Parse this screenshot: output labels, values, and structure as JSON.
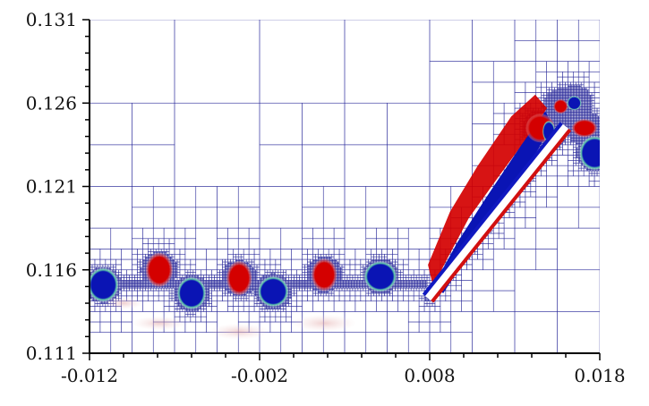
{
  "chart_data": {
    "type": "heatmap",
    "title": "",
    "xlabel": "",
    "ylabel": "",
    "xlim": [
      -0.012,
      0.018
    ],
    "ylim": [
      0.111,
      0.131
    ],
    "x_ticks": [
      "-0.012",
      "-0.002",
      "0.008",
      "0.018"
    ],
    "y_ticks": [
      "0.111",
      "0.116",
      "0.121",
      "0.126",
      "0.131"
    ],
    "x_tick_values": [
      -0.012,
      -0.002,
      0.008,
      0.018
    ],
    "y_tick_values": [
      0.111,
      0.116,
      0.121,
      0.126,
      0.131
    ],
    "grid": "adaptive-mesh",
    "colors": {
      "positive_vortex": "#d40000",
      "negative_vortex": "#0a14b4",
      "vortex_rim": "#5ec9a8",
      "mesh": "#2a2a9a",
      "plate_edge_red": "#d21010",
      "plate_edge_blue": "#1018c0",
      "axis": "#000000"
    },
    "vortices": [
      {
        "sign": "negative",
        "x": -0.0112,
        "y": 0.1151
      },
      {
        "sign": "positive",
        "x": -0.0079,
        "y": 0.116
      },
      {
        "sign": "negative",
        "x": -0.006,
        "y": 0.1146
      },
      {
        "sign": "positive",
        "x": -0.0032,
        "y": 0.1155
      },
      {
        "sign": "negative",
        "x": -0.0012,
        "y": 0.1147
      },
      {
        "sign": "positive",
        "x": 0.0018,
        "y": 0.1157
      },
      {
        "sign": "negative",
        "x": 0.0051,
        "y": 0.1156
      },
      {
        "sign": "positive",
        "x": 0.0145,
        "y": 0.1245
      },
      {
        "sign": "negative",
        "x": 0.015,
        "y": 0.1243
      },
      {
        "sign": "positive",
        "x": 0.0157,
        "y": 0.1258
      },
      {
        "sign": "negative",
        "x": 0.0165,
        "y": 0.126
      },
      {
        "sign": "positive",
        "x": 0.0171,
        "y": 0.1245
      },
      {
        "sign": "negative",
        "x": 0.0177,
        "y": 0.123
      }
    ],
    "plate": {
      "root": [
        0.0079,
        0.1143
      ],
      "tip": [
        0.016,
        0.1246
      ],
      "root_trailing": [
        0.0082,
        0.1138
      ]
    }
  }
}
